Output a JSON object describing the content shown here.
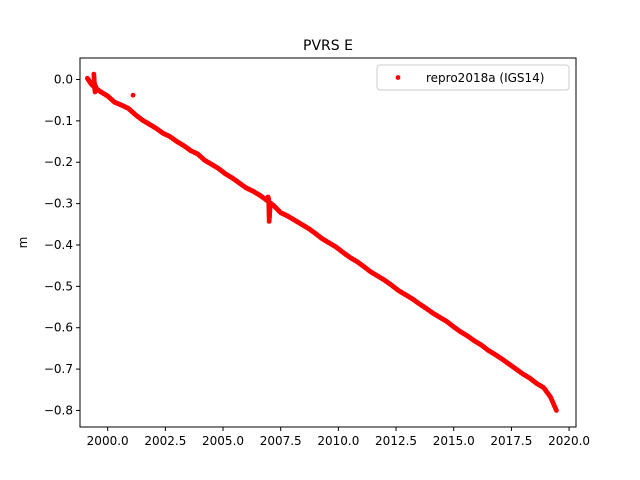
{
  "chart_data": {
    "type": "scatter",
    "title": "PVRS E",
    "xlabel": "",
    "ylabel": "m",
    "xlim": [
      1998.8,
      2020.3
    ],
    "ylim": [
      -0.84,
      0.052
    ],
    "xticks": [
      2000.0,
      2002.5,
      2005.0,
      2007.5,
      2010.0,
      2012.5,
      2015.0,
      2017.5,
      2020.0
    ],
    "xtick_labels": [
      "2000.0",
      "2002.5",
      "2005.0",
      "2007.5",
      "2010.0",
      "2012.5",
      "2015.0",
      "2017.5",
      "2020.0"
    ],
    "yticks": [
      0.0,
      -0.1,
      -0.2,
      -0.3,
      -0.4,
      -0.5,
      -0.6,
      -0.7,
      -0.8
    ],
    "ytick_labels": [
      "0.0",
      "−0.1",
      "−0.2",
      "−0.3",
      "−0.4",
      "−0.5",
      "−0.6",
      "−0.7",
      "−0.8"
    ],
    "grid": false,
    "legend_position": "top-right",
    "series": [
      {
        "name": "repro2018a (IGS14)",
        "color": "#ff0000",
        "marker": "point",
        "x": [
          1999.12,
          1999.3,
          1999.5,
          1999.7,
          2000.0,
          2000.3,
          2000.6,
          2000.9,
          2001.2,
          2001.5,
          2001.8,
          2002.1,
          2002.4,
          2002.7,
          2003.0,
          2003.3,
          2003.6,
          2003.9,
          2004.2,
          2004.5,
          2004.8,
          2005.1,
          2005.4,
          2005.7,
          2006.0,
          2006.3,
          2006.6,
          2006.9,
          2007.2,
          2007.5,
          2007.8,
          2008.1,
          2008.4,
          2008.7,
          2009.0,
          2009.3,
          2009.6,
          2009.9,
          2010.2,
          2010.5,
          2010.8,
          2011.1,
          2011.4,
          2011.7,
          2012.0,
          2012.3,
          2012.6,
          2012.9,
          2013.2,
          2013.5,
          2013.8,
          2014.1,
          2014.4,
          2014.7,
          2015.0,
          2015.3,
          2015.6,
          2015.9,
          2016.2,
          2016.5,
          2016.8,
          2017.1,
          2017.4,
          2017.7,
          2018.0,
          2018.3,
          2018.6,
          2018.9,
          2019.2,
          2019.45,
          1999.4,
          1999.45,
          1999.38,
          1999.5,
          2001.1,
          2006.95,
          2006.98,
          2007.0,
          2007.05
        ],
        "y": [
          0.003,
          -0.012,
          -0.022,
          -0.03,
          -0.04,
          -0.055,
          -0.062,
          -0.07,
          -0.085,
          -0.098,
          -0.108,
          -0.118,
          -0.13,
          -0.138,
          -0.15,
          -0.16,
          -0.172,
          -0.18,
          -0.195,
          -0.205,
          -0.215,
          -0.228,
          -0.238,
          -0.25,
          -0.262,
          -0.27,
          -0.28,
          -0.292,
          -0.305,
          -0.322,
          -0.33,
          -0.34,
          -0.35,
          -0.36,
          -0.372,
          -0.385,
          -0.395,
          -0.405,
          -0.418,
          -0.43,
          -0.44,
          -0.452,
          -0.465,
          -0.475,
          -0.485,
          -0.497,
          -0.51,
          -0.52,
          -0.53,
          -0.542,
          -0.553,
          -0.565,
          -0.575,
          -0.585,
          -0.598,
          -0.61,
          -0.62,
          -0.632,
          -0.642,
          -0.655,
          -0.665,
          -0.676,
          -0.688,
          -0.7,
          -0.712,
          -0.722,
          -0.735,
          -0.745,
          -0.768,
          -0.8,
          0.013,
          -0.03,
          -0.005,
          -0.02,
          -0.038,
          -0.284,
          -0.292,
          -0.343,
          -0.3
        ]
      }
    ]
  }
}
